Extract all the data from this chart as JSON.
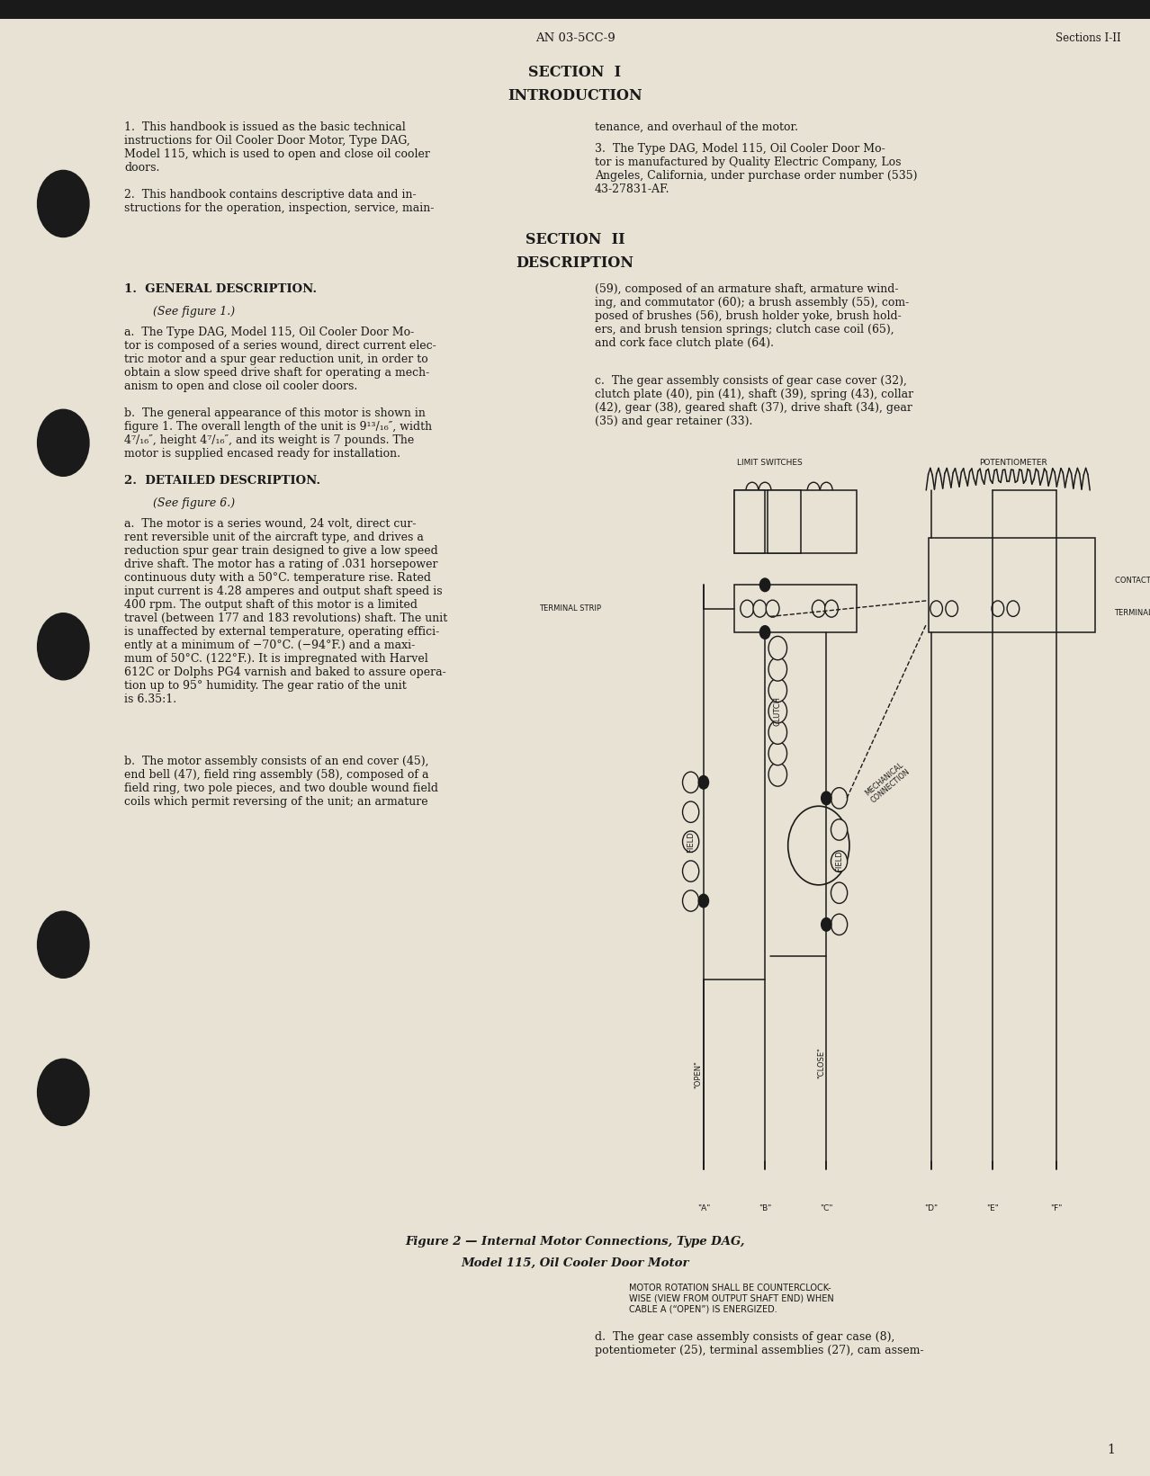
{
  "bg_color": "#e8e2d4",
  "text_color": "#1a1a1a",
  "page_width": 12.78,
  "page_height": 16.41,
  "header_doc_num": "AN 03-5CC-9",
  "header_section_right": "Sections I-II",
  "page_num": "1"
}
